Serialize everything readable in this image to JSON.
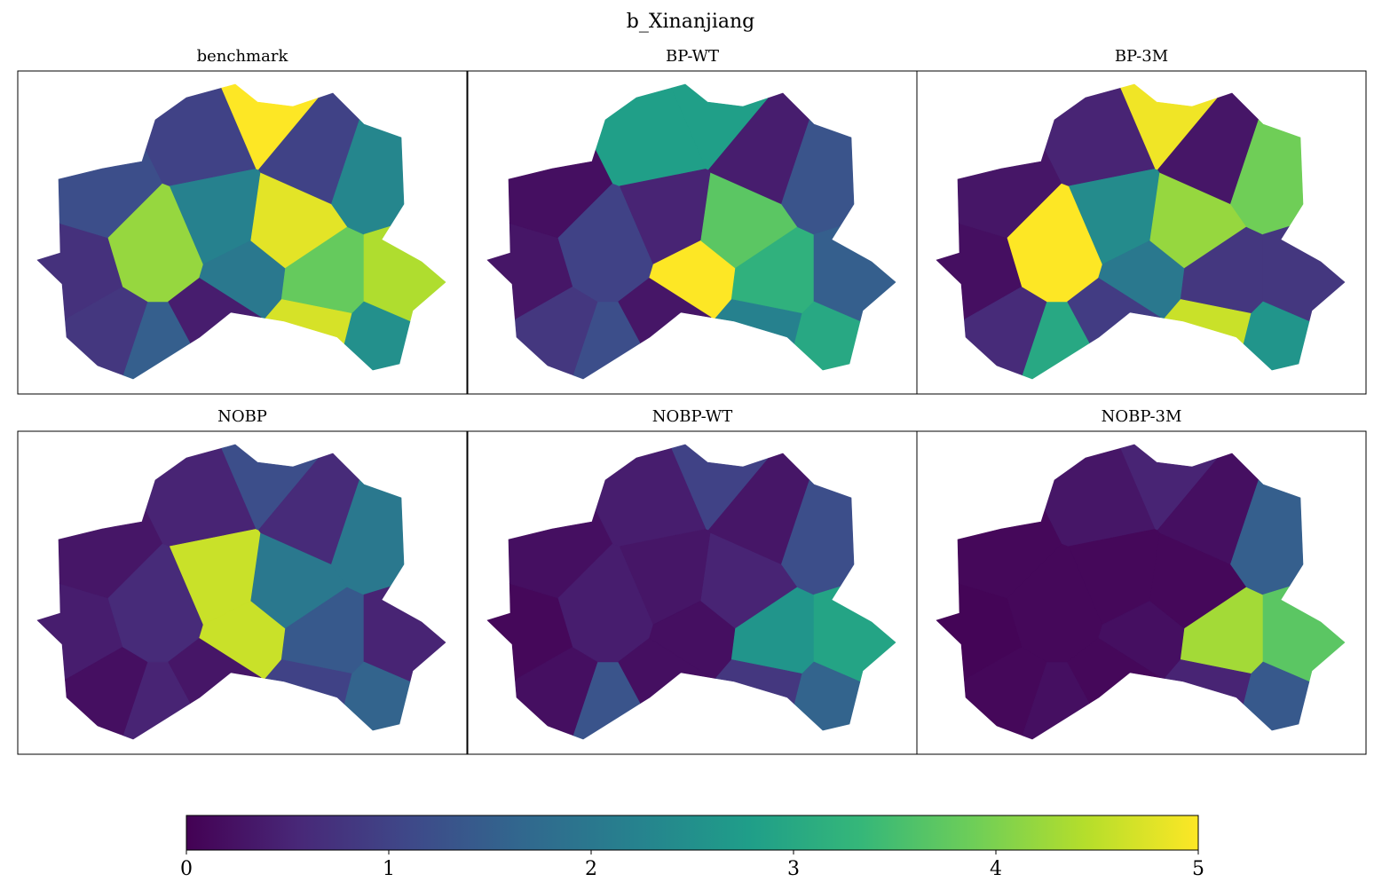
{
  "chart_data": {
    "type": "choropleth",
    "title": "b_Xinanjiang",
    "colormap": "viridis",
    "clim": [
      0,
      5
    ],
    "cticks": [
      0,
      1,
      2,
      3,
      4,
      5
    ],
    "panels": [
      {
        "title": "benchmark",
        "values": [
          0.7,
          1.2,
          0.8,
          1.5,
          4.2,
          1.0,
          2.2,
          2.0,
          5.0,
          4.8,
          1.0,
          3.8,
          4.7,
          2.3,
          4.4,
          2.5,
          0.4
        ]
      },
      {
        "title": "BP-WT",
        "values": [
          0.3,
          0.2,
          0.8,
          1.2,
          1.0,
          2.8,
          0.5,
          5.0,
          2.8,
          3.7,
          0.4,
          3.2,
          2.2,
          1.3,
          1.5,
          3.0,
          0.3
        ]
      },
      {
        "title": "BP-3M",
        "values": [
          0.2,
          0.3,
          0.6,
          3.0,
          5.0,
          0.5,
          2.4,
          2.0,
          4.9,
          4.2,
          0.3,
          0.8,
          4.6,
          3.9,
          0.8,
          2.6,
          0.9
        ]
      },
      {
        "title": "NOBP",
        "values": [
          0.4,
          0.3,
          0.2,
          0.5,
          0.6,
          0.5,
          4.6,
          4.6,
          1.2,
          2.0,
          0.6,
          1.4,
          1.0,
          2.0,
          0.5,
          1.6,
          0.3
        ]
      },
      {
        "title": "NOBP-WT",
        "values": [
          0.1,
          0.2,
          0.2,
          1.3,
          0.4,
          0.4,
          0.3,
          0.2,
          1.0,
          0.5,
          0.3,
          2.6,
          0.8,
          1.2,
          2.9,
          1.6,
          0.2
        ]
      },
      {
        "title": "NOBP-3M",
        "values": [
          0.05,
          0.1,
          0.1,
          0.2,
          0.1,
          0.3,
          0.1,
          0.2,
          0.5,
          0.1,
          0.2,
          4.3,
          0.5,
          1.5,
          3.7,
          1.4,
          0.1
        ]
      }
    ]
  }
}
